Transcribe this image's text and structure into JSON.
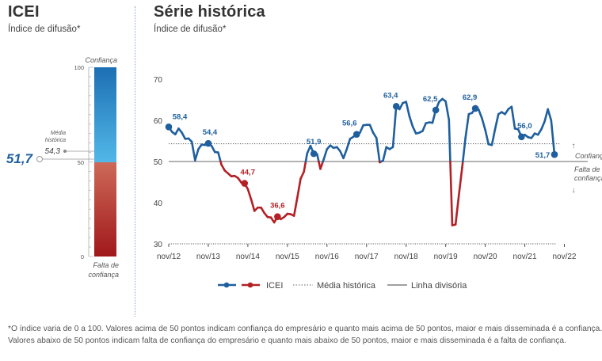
{
  "left_panel": {
    "title": "ICEI",
    "subtitle": "Índice de difusão*",
    "scale_top": "100",
    "scale_mid": "50",
    "scale_bottom": "0",
    "label_top": "Confiança",
    "label_bottom": "Falta de confiança",
    "media_label": "Média histórica",
    "media_value": "54,3",
    "current_value": "51,7",
    "colors": {
      "blue_top": "#1f73b7",
      "blue_bottom": "#4fb6e6",
      "red_top": "#c96050",
      "red_bottom": "#a31d1d"
    }
  },
  "right_panel": {
    "title": "Série histórica",
    "subtitle": "Índice de difusão*"
  },
  "chart_data": {
    "type": "line",
    "ylim": [
      30,
      70
    ],
    "yticks": [
      "30",
      "40",
      "50",
      "60",
      "70"
    ],
    "xticks": [
      "nov/12",
      "nov/13",
      "nov/14",
      "nov/15",
      "nov/16",
      "nov/17",
      "nov/18",
      "nov/19",
      "nov/20",
      "nov/21",
      "nov/22"
    ],
    "start": "nov/12",
    "media_historica": 54.3,
    "linha_divisoria": 50,
    "series": [
      {
        "name": "ICEI",
        "values": [
          58.4,
          57.2,
          56.6,
          58.0,
          57.0,
          55.5,
          55.6,
          54.8,
          50.3,
          53.0,
          54.1,
          54.0,
          54.4,
          53.8,
          52.3,
          52.2,
          49.2,
          47.8,
          47.1,
          46.4,
          46.5,
          46.0,
          44.9,
          44.7,
          43.3,
          40.8,
          38.0,
          38.8,
          38.8,
          37.5,
          36.5,
          36.4,
          35.2,
          36.6,
          36.0,
          36.5,
          37.3,
          37.2,
          36.8,
          41.2,
          45.8,
          47.5,
          52.0,
          53.8,
          51.9,
          51.8,
          48.2,
          50.5,
          53.0,
          53.9,
          53.3,
          53.5,
          52.5,
          50.8,
          53.0,
          55.5,
          56.0,
          56.6,
          57.0,
          58.8,
          58.9,
          58.9,
          57.0,
          55.7,
          49.8,
          50.2,
          53.5,
          53.0,
          53.5,
          63.4,
          62.7,
          64.2,
          64.5,
          61.0,
          58.5,
          56.8,
          57.0,
          57.4,
          59.3,
          59.5,
          59.4,
          62.5,
          64.5,
          65.2,
          64.6,
          60.1,
          34.5,
          34.7,
          41.8,
          48.5,
          55.7,
          61.5,
          61.8,
          62.9,
          62.6,
          60.5,
          57.7,
          54.2,
          54.0,
          57.9,
          61.5,
          62.0,
          61.5,
          62.7,
          63.3,
          58.0,
          57.8,
          56.0,
          56.5,
          55.9,
          55.7,
          56.8,
          56.5,
          57.8,
          59.7,
          62.7,
          60.0,
          51.7
        ],
        "highlighted": [
          {
            "label": "58,4",
            "value": 58.4
          },
          {
            "label": "54,4",
            "value": 54.4
          },
          {
            "label": "44,7",
            "value": 44.7
          },
          {
            "label": "36,6",
            "value": 36.6
          },
          {
            "label": "51,9",
            "value": 51.9
          },
          {
            "label": "56,6",
            "value": 56.6
          },
          {
            "label": "63,4",
            "value": 63.4
          },
          {
            "label": "62,5",
            "value": 62.5
          },
          {
            "label": "62,9",
            "value": 62.9
          },
          {
            "label": "56,0",
            "value": 56.0
          },
          {
            "label": "51,7",
            "value": 51.7
          }
        ]
      }
    ],
    "annotations": {
      "above": "Confiança",
      "below": "Falta de confiança"
    },
    "colors": {
      "above": "#1f5f9e",
      "below": "#b32025",
      "media": "#555555",
      "divisoria": "#777777"
    }
  },
  "legend": {
    "icei": "ICEI",
    "media": "Média histórica",
    "divisoria": "Linha divisória"
  },
  "footnote": {
    "line1": "*O índice varia de 0 a 100. Valores acima de 50 pontos indicam confiança do empresário e quanto mais acima de 50 pontos, maior e mais disseminada é a confiança.",
    "line2": "Valores abaixo de 50 pontos indicam falta de confiança do empresário e quanto mais abaixo de 50 pontos, maior e mais disseminada é a falta de confiança."
  }
}
